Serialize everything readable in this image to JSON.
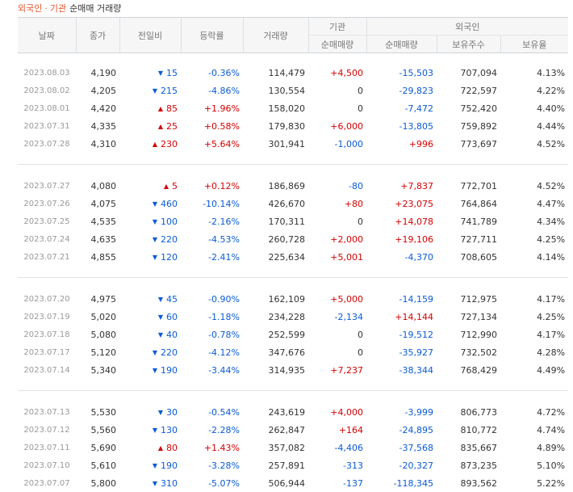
{
  "title": {
    "part1": "외국인",
    "separator": "·",
    "part2": "기관",
    "part3": "순매매 거래량"
  },
  "colors": {
    "up": "#d60000",
    "down": "#0a5bd6",
    "title_accent": "#e5552d"
  },
  "headers": {
    "date": "날짜",
    "close": "종가",
    "change": "전일비",
    "rate": "등락률",
    "volume": "거래량",
    "institution": "기관",
    "foreigner": "외국인",
    "inst_net": "순매매량",
    "for_net": "순매매량",
    "holdings": "보유주수",
    "ratio": "보유율"
  },
  "groups": [
    [
      {
        "date": "2023.08.03",
        "close": "4,190",
        "dir": "down",
        "change": "15",
        "rate": "-0.36%",
        "volume": "114,479",
        "inst": "+4,500",
        "frgn": "-15,503",
        "hold": "707,094",
        "ratio": "4.13%"
      },
      {
        "date": "2023.08.02",
        "close": "4,205",
        "dir": "down",
        "change": "215",
        "rate": "-4.86%",
        "volume": "130,554",
        "inst": "0",
        "frgn": "-29,823",
        "hold": "722,597",
        "ratio": "4.22%"
      },
      {
        "date": "2023.08.01",
        "close": "4,420",
        "dir": "up",
        "change": "85",
        "rate": "+1.96%",
        "volume": "158,020",
        "inst": "0",
        "frgn": "-7,472",
        "hold": "752,420",
        "ratio": "4.40%"
      },
      {
        "date": "2023.07.31",
        "close": "4,335",
        "dir": "up",
        "change": "25",
        "rate": "+0.58%",
        "volume": "179,830",
        "inst": "+6,000",
        "frgn": "-13,805",
        "hold": "759,892",
        "ratio": "4.44%"
      },
      {
        "date": "2023.07.28",
        "close": "4,310",
        "dir": "up",
        "change": "230",
        "rate": "+5.64%",
        "volume": "301,941",
        "inst": "-1,000",
        "frgn": "+996",
        "hold": "773,697",
        "ratio": "4.52%"
      }
    ],
    [
      {
        "date": "2023.07.27",
        "close": "4,080",
        "dir": "up",
        "change": "5",
        "rate": "+0.12%",
        "volume": "186,869",
        "inst": "-80",
        "frgn": "+7,837",
        "hold": "772,701",
        "ratio": "4.52%"
      },
      {
        "date": "2023.07.26",
        "close": "4,075",
        "dir": "down",
        "change": "460",
        "rate": "-10.14%",
        "volume": "426,670",
        "inst": "+80",
        "frgn": "+23,075",
        "hold": "764,864",
        "ratio": "4.47%"
      },
      {
        "date": "2023.07.25",
        "close": "4,535",
        "dir": "down",
        "change": "100",
        "rate": "-2.16%",
        "volume": "170,311",
        "inst": "0",
        "frgn": "+14,078",
        "hold": "741,789",
        "ratio": "4.34%"
      },
      {
        "date": "2023.07.24",
        "close": "4,635",
        "dir": "down",
        "change": "220",
        "rate": "-4.53%",
        "volume": "260,728",
        "inst": "+2,000",
        "frgn": "+19,106",
        "hold": "727,711",
        "ratio": "4.25%"
      },
      {
        "date": "2023.07.21",
        "close": "4,855",
        "dir": "down",
        "change": "120",
        "rate": "-2.41%",
        "volume": "225,634",
        "inst": "+5,001",
        "frgn": "-4,370",
        "hold": "708,605",
        "ratio": "4.14%"
      }
    ],
    [
      {
        "date": "2023.07.20",
        "close": "4,975",
        "dir": "down",
        "change": "45",
        "rate": "-0.90%",
        "volume": "162,109",
        "inst": "+5,000",
        "frgn": "-14,159",
        "hold": "712,975",
        "ratio": "4.17%"
      },
      {
        "date": "2023.07.19",
        "close": "5,020",
        "dir": "down",
        "change": "60",
        "rate": "-1.18%",
        "volume": "234,228",
        "inst": "-2,134",
        "frgn": "+14,144",
        "hold": "727,134",
        "ratio": "4.25%"
      },
      {
        "date": "2023.07.18",
        "close": "5,080",
        "dir": "down",
        "change": "40",
        "rate": "-0.78%",
        "volume": "252,599",
        "inst": "0",
        "frgn": "-19,512",
        "hold": "712,990",
        "ratio": "4.17%"
      },
      {
        "date": "2023.07.17",
        "close": "5,120",
        "dir": "down",
        "change": "220",
        "rate": "-4.12%",
        "volume": "347,676",
        "inst": "0",
        "frgn": "-35,927",
        "hold": "732,502",
        "ratio": "4.28%"
      },
      {
        "date": "2023.07.14",
        "close": "5,340",
        "dir": "down",
        "change": "190",
        "rate": "-3.44%",
        "volume": "314,935",
        "inst": "+7,237",
        "frgn": "-38,344",
        "hold": "768,429",
        "ratio": "4.49%"
      }
    ],
    [
      {
        "date": "2023.07.13",
        "close": "5,530",
        "dir": "down",
        "change": "30",
        "rate": "-0.54%",
        "volume": "243,619",
        "inst": "+4,000",
        "frgn": "-3,999",
        "hold": "806,773",
        "ratio": "4.72%"
      },
      {
        "date": "2023.07.12",
        "close": "5,560",
        "dir": "down",
        "change": "130",
        "rate": "-2.28%",
        "volume": "262,847",
        "inst": "+164",
        "frgn": "-24,895",
        "hold": "810,772",
        "ratio": "4.74%"
      },
      {
        "date": "2023.07.11",
        "close": "5,690",
        "dir": "up",
        "change": "80",
        "rate": "+1.43%",
        "volume": "357,082",
        "inst": "-4,406",
        "frgn": "-37,568",
        "hold": "835,667",
        "ratio": "4.89%"
      },
      {
        "date": "2023.07.10",
        "close": "5,610",
        "dir": "down",
        "change": "190",
        "rate": "-3.28%",
        "volume": "257,891",
        "inst": "-313",
        "frgn": "-20,327",
        "hold": "873,235",
        "ratio": "5.10%"
      },
      {
        "date": "2023.07.07",
        "close": "5,800",
        "dir": "down",
        "change": "310",
        "rate": "-5.07%",
        "volume": "506,944",
        "inst": "-137",
        "frgn": "-118,345",
        "hold": "893,562",
        "ratio": "5.22%"
      }
    ]
  ]
}
